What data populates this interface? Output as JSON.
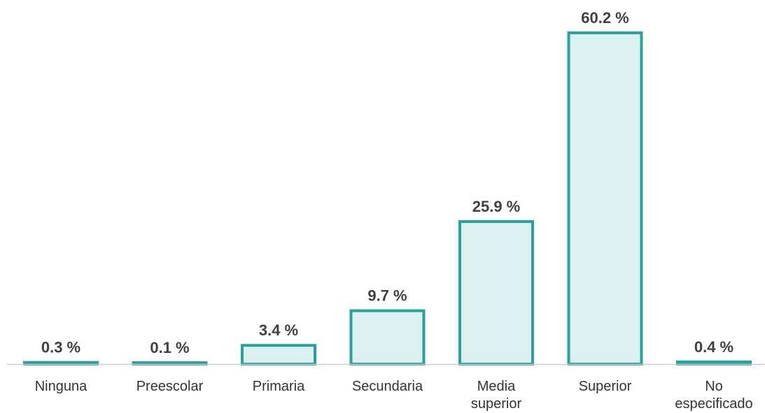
{
  "chart_data": {
    "type": "bar",
    "categories": [
      [
        "Ninguna"
      ],
      [
        "Preescolar"
      ],
      [
        "Primaria"
      ],
      [
        "Secundaria"
      ],
      [
        "Media",
        "superior"
      ],
      [
        "Superior"
      ],
      [
        "No",
        "especificado"
      ]
    ],
    "values": [
      0.3,
      0.1,
      3.4,
      9.7,
      25.9,
      60.2,
      0.4
    ],
    "data_labels": [
      "0.3 %",
      "0.1 %",
      "3.4 %",
      "9.7 %",
      "25.9 %",
      "60.2 %",
      "0.4 %"
    ],
    "title": "",
    "xlabel": "",
    "ylabel": "",
    "ylim": [
      0,
      60.2
    ],
    "grid": false,
    "legend": "none",
    "colors": {
      "bar_fill": "#ddf0f0",
      "bar_stroke": "#27a39b",
      "baseline": "#cccccc",
      "label_text": "#404040",
      "category_text": "#333333"
    }
  }
}
